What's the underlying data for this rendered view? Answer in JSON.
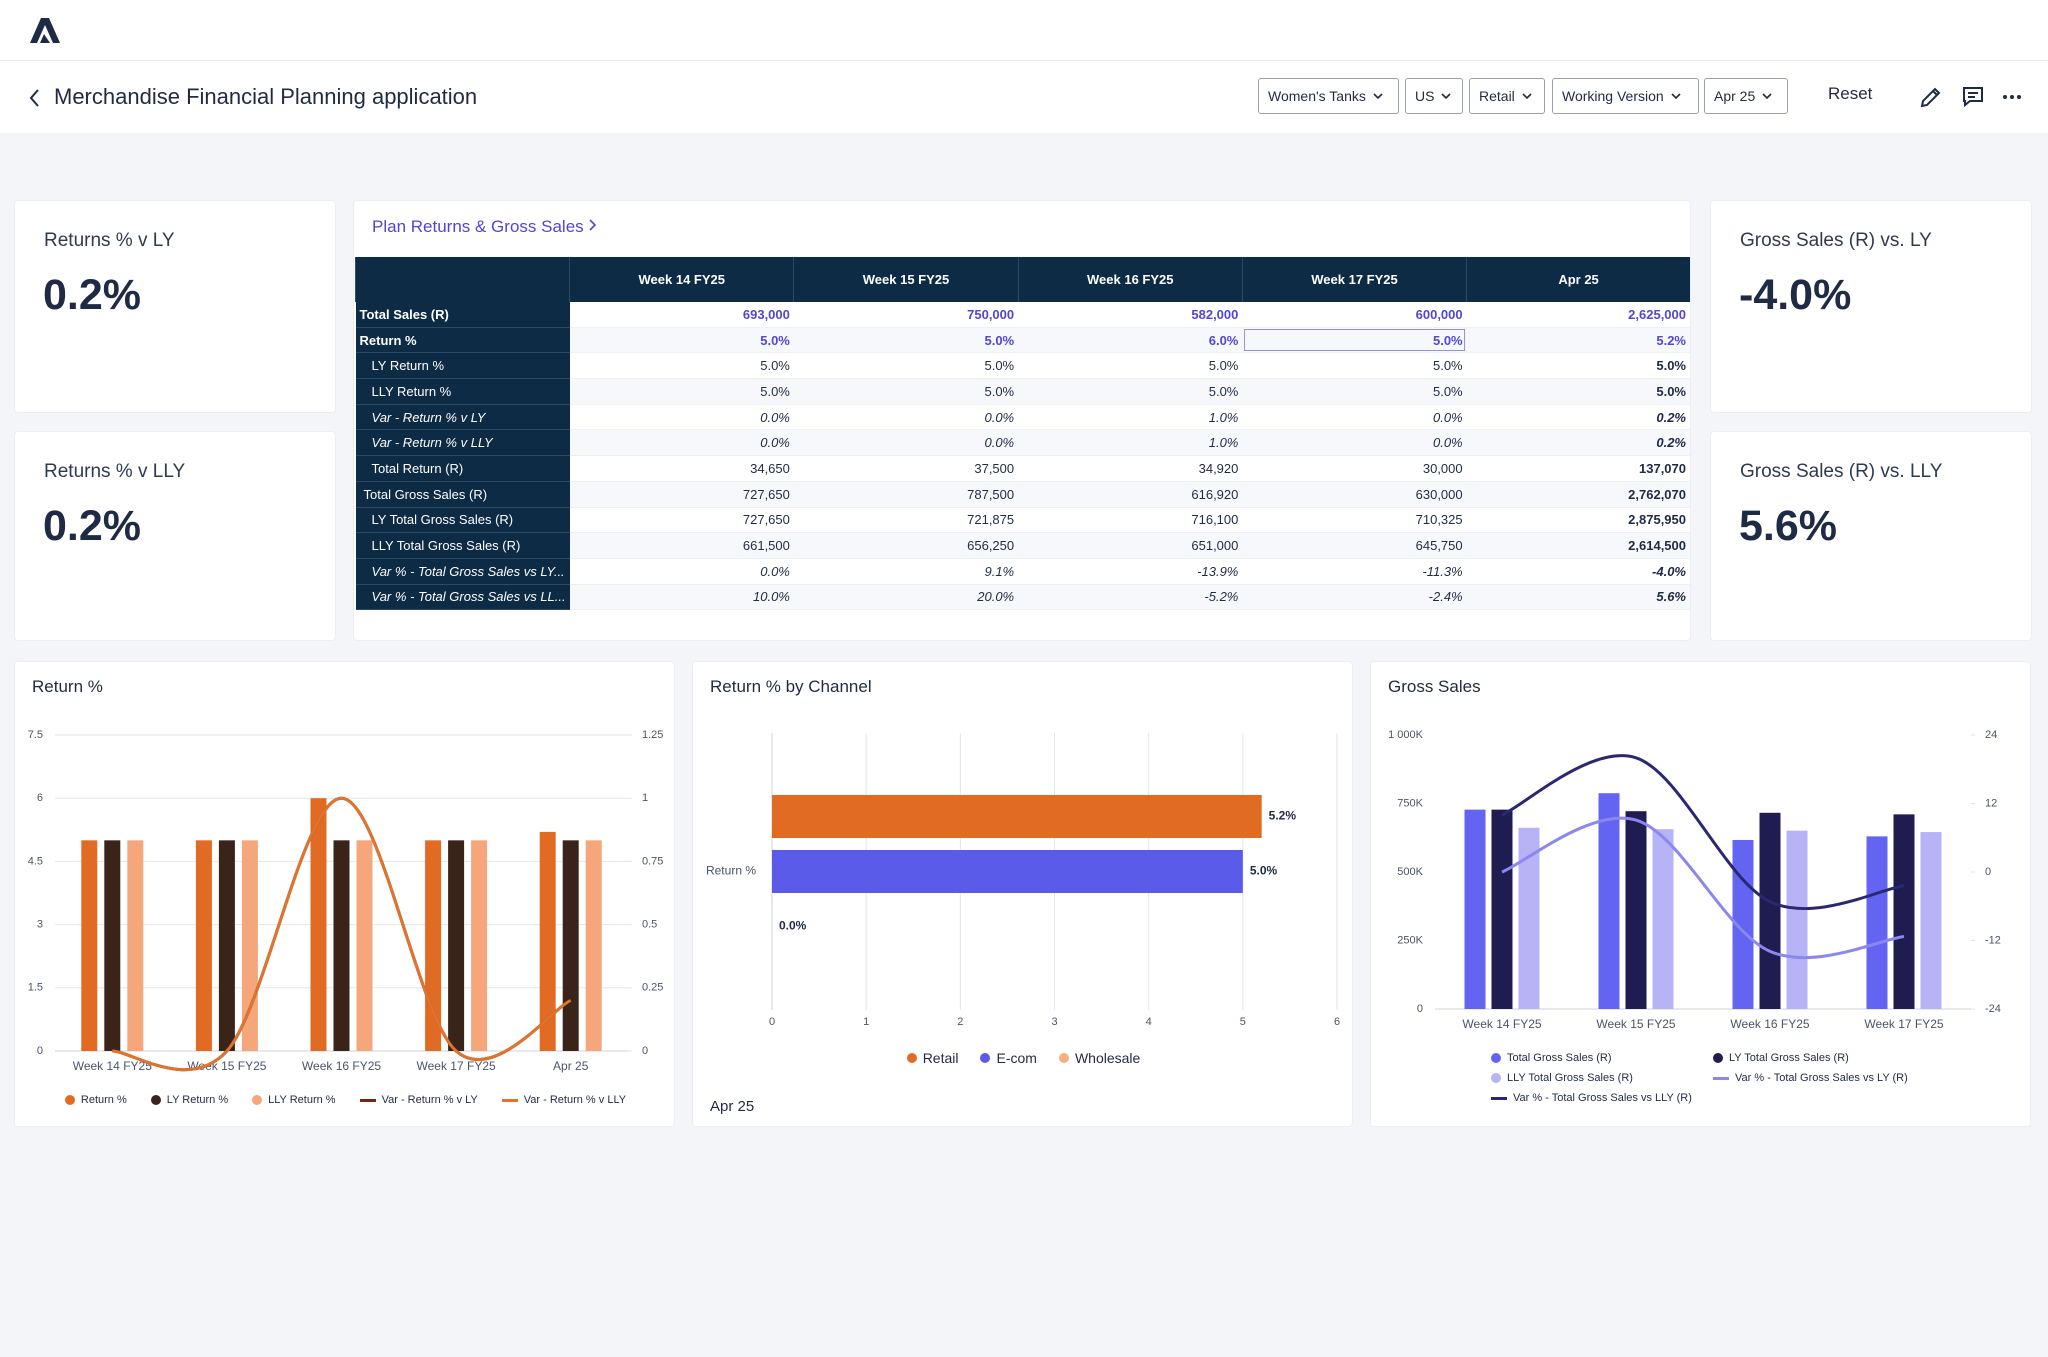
{
  "header": {
    "title": "Merchandise Financial Planning application",
    "filters": [
      "Women's Tanks",
      "US",
      "Retail",
      "Working Version",
      "Apr 25"
    ],
    "reset": "Reset"
  },
  "kpis": [
    {
      "label": "Returns % v LY",
      "value": "0.2%"
    },
    {
      "label": "Returns % v LLY",
      "value": "0.2%"
    },
    {
      "label": "Gross Sales (R) vs. LY",
      "value": "-4.0%"
    },
    {
      "label": "Gross Sales (R) vs. LLY",
      "value": "5.6%"
    }
  ],
  "table": {
    "title": "Plan Returns & Gross Sales",
    "columns": [
      "Week 14 FY25",
      "Week 15 FY25",
      "Week 16 FY25",
      "Week 17 FY25",
      "Apr 25"
    ],
    "rows": [
      {
        "label": "Total Sales (R)",
        "values": [
          "693,000",
          "750,000",
          "582,000",
          "600,000",
          "2,625,000"
        ]
      },
      {
        "label": "Return %",
        "values": [
          "5.0%",
          "5.0%",
          "6.0%",
          "5.0%",
          "5.2%"
        ]
      },
      {
        "label": "LY Return %",
        "values": [
          "5.0%",
          "5.0%",
          "5.0%",
          "5.0%",
          "5.0%"
        ]
      },
      {
        "label": "LLY Return %",
        "values": [
          "5.0%",
          "5.0%",
          "5.0%",
          "5.0%",
          "5.0%"
        ]
      },
      {
        "label": "Var - Return % v LY",
        "values": [
          "0.0%",
          "0.0%",
          "1.0%",
          "0.0%",
          "0.2%"
        ]
      },
      {
        "label": "Var - Return % v LLY",
        "values": [
          "0.0%",
          "0.0%",
          "1.0%",
          "0.0%",
          "0.2%"
        ]
      },
      {
        "label": "Total Return (R)",
        "values": [
          "34,650",
          "37,500",
          "34,920",
          "30,000",
          "137,070"
        ]
      },
      {
        "label": "Total Gross Sales (R)",
        "values": [
          "727,650",
          "787,500",
          "616,920",
          "630,000",
          "2,762,070"
        ]
      },
      {
        "label": "LY Total Gross Sales (R)",
        "values": [
          "727,650",
          "721,875",
          "716,100",
          "710,325",
          "2,875,950"
        ]
      },
      {
        "label": "LLY Total Gross Sales (R)",
        "values": [
          "661,500",
          "656,250",
          "651,000",
          "645,750",
          "2,614,500"
        ]
      },
      {
        "label": "Var % - Total Gross Sales vs LY...",
        "values": [
          "0.0%",
          "9.1%",
          "-13.9%",
          "-11.3%",
          "-4.0%"
        ]
      },
      {
        "label": "Var % - Total Gross Sales vs LL...",
        "values": [
          "10.0%",
          "20.0%",
          "-5.2%",
          "-2.4%",
          "5.6%"
        ]
      }
    ]
  },
  "chart_data": [
    {
      "type": "bar",
      "title": "Return %",
      "categories": [
        "Week 14 FY25",
        "Week 15 FY25",
        "Week 16 FY25",
        "Week 17 FY25",
        "Apr 25"
      ],
      "ylim": [
        0,
        7.5
      ],
      "yticks": [
        0,
        1.5,
        3,
        4.5,
        6,
        7.5
      ],
      "y2lim": [
        0,
        1.25
      ],
      "y2ticks": [
        0,
        0.25,
        0.5,
        0.75,
        1,
        1.25
      ],
      "grid": true,
      "legend": "bottom",
      "series": [
        {
          "name": "Return %",
          "color": "#e16b23",
          "values": [
            5,
            5,
            6,
            5,
            5.2
          ]
        },
        {
          "name": "LY Return %",
          "color": "#3a2419",
          "values": [
            5,
            5,
            5,
            5,
            5
          ]
        },
        {
          "name": "LLY Return %",
          "color": "#f5a77b",
          "values": [
            5,
            5,
            5,
            5,
            5
          ]
        },
        {
          "name": "Var - Return % v LY",
          "color": "#6e2c0c",
          "type": "line",
          "axis": "y2",
          "values": [
            0,
            0,
            1,
            0,
            0.2
          ]
        },
        {
          "name": "Var - Return % v LLY",
          "color": "#df7430",
          "type": "line",
          "axis": "y2",
          "values": [
            0,
            0,
            1,
            0,
            0.2
          ]
        }
      ]
    },
    {
      "type": "hbar",
      "title": "Return % by Channel",
      "annotation": "Apr 25",
      "categories": [
        "Return %"
      ],
      "xlim": [
        0,
        6
      ],
      "xticks": [
        0,
        1,
        2,
        3,
        4,
        5,
        6
      ],
      "grid": true,
      "legend": "bottom",
      "series": [
        {
          "name": "Retail",
          "color": "#e16b23",
          "values": [
            5.2
          ],
          "value_labels": [
            "5.2%"
          ]
        },
        {
          "name": "E-com",
          "color": "#5b5be9",
          "values": [
            5.0
          ],
          "value_labels": [
            "5.0%"
          ]
        },
        {
          "name": "Wholesale",
          "color": "#f5b07f",
          "values": [
            0
          ],
          "value_labels": [
            "0.0%"
          ]
        }
      ]
    },
    {
      "type": "bar",
      "title": "Gross Sales",
      "categories": [
        "Week 14 FY25",
        "Week 15 FY25",
        "Week 16 FY25",
        "Week 17 FY25"
      ],
      "ylim": [
        0,
        1000000
      ],
      "yticks": [
        0,
        {
          "value": 250000,
          "label": "250K"
        },
        {
          "value": 500000,
          "label": "500K"
        },
        {
          "value": 750000,
          "label": "750K"
        },
        {
          "value": 1000000,
          "label": "1 000K"
        }
      ],
      "y2lim": [
        -24,
        24
      ],
      "y2ticks": [
        -24,
        -12,
        0,
        12,
        24
      ],
      "grid": false,
      "legend": "bottom",
      "series": [
        {
          "name": "Total Gross Sales (R)",
          "color": "#6464f2",
          "values": [
            727650,
            787500,
            616920,
            630000
          ]
        },
        {
          "name": "LY Total Gross Sales (R)",
          "color": "#1e1c50",
          "values": [
            727650,
            721875,
            716100,
            710325
          ]
        },
        {
          "name": "LLY Total Gross Sales (R)",
          "color": "#b6b4f7",
          "values": [
            661500,
            656250,
            651000,
            645750
          ]
        },
        {
          "name": "Var % - Total Gross Sales vs LY (R)",
          "color": "#8b87f1",
          "type": "line",
          "axis": "y2",
          "values": [
            0,
            9.1,
            -13.9,
            -11.3
          ]
        },
        {
          "name": "Var % - Total Gross Sales vs LLY (R)",
          "color": "#2a2875",
          "type": "line",
          "axis": "y2",
          "values": [
            10,
            20,
            -5.2,
            -2.4
          ]
        }
      ]
    }
  ]
}
